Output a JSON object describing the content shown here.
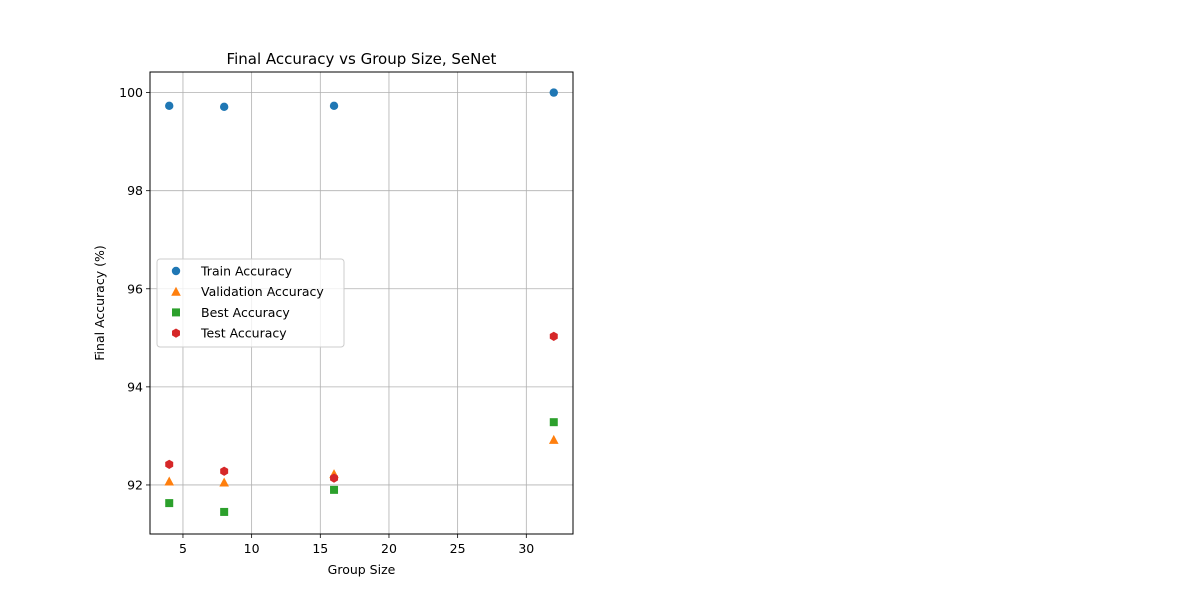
{
  "chart_data": {
    "type": "scatter",
    "title": "Final Accuracy vs Group Size, SeNet",
    "xlabel": "Group Size",
    "ylabel": "Final Accuracy (%)",
    "xlim": [
      2.6,
      33.4
    ],
    "ylim": [
      91.0,
      100.42
    ],
    "xticks": [
      5,
      10,
      15,
      20,
      25,
      30
    ],
    "yticks": [
      92,
      94,
      96,
      98,
      100
    ],
    "grid": true,
    "legend_position": "center-left",
    "x": [
      4,
      8,
      16,
      32
    ],
    "series": [
      {
        "name": "Train Accuracy",
        "marker": "circle",
        "color": "#1f77b4",
        "values": [
          99.73,
          99.71,
          99.73,
          100.0
        ]
      },
      {
        "name": "Validation Accuracy",
        "marker": "triangle",
        "color": "#ff7f0e",
        "values": [
          92.07,
          92.05,
          92.22,
          92.92
        ]
      },
      {
        "name": "Best Accuracy",
        "marker": "square",
        "color": "#2ca02c",
        "values": [
          91.63,
          91.45,
          91.9,
          93.28
        ]
      },
      {
        "name": "Test Accuracy",
        "marker": "hexagon",
        "color": "#d62728",
        "values": [
          92.42,
          92.28,
          92.14,
          95.03
        ]
      }
    ]
  }
}
